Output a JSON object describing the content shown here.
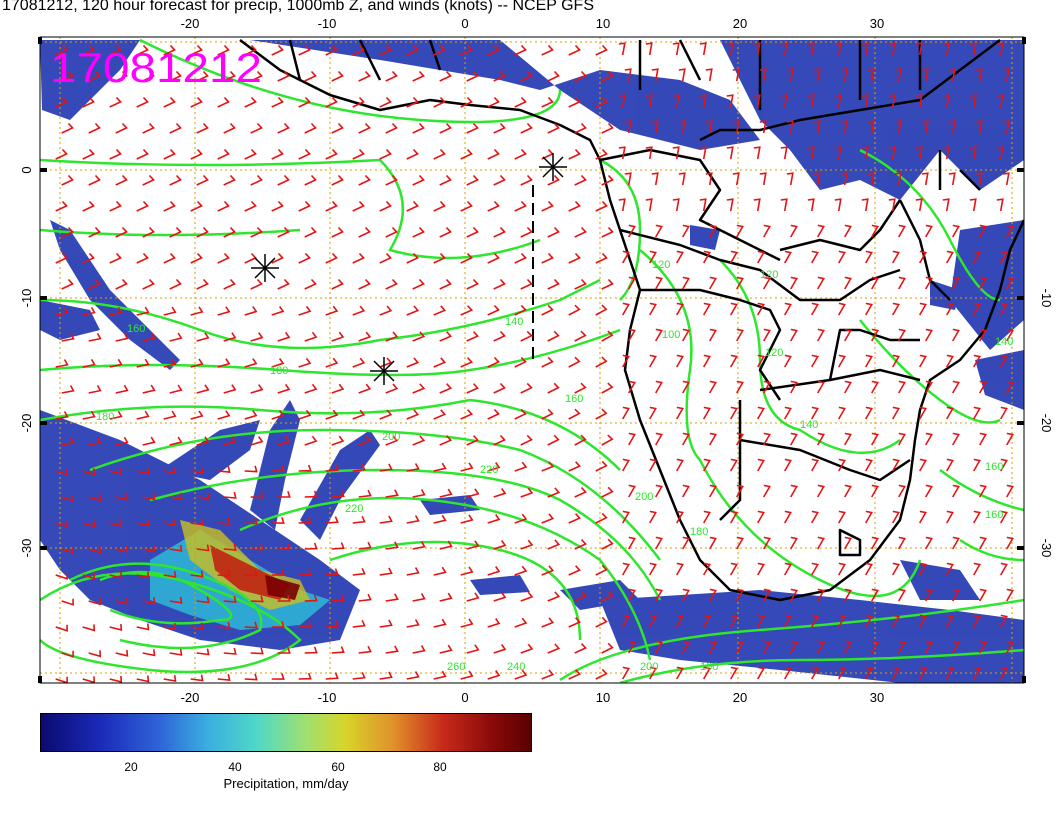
{
  "title": "17081212, 120 hour forecast for precip, 1000mb Z, and winds (knots) -- NCEP GFS",
  "stamp": "17081212",
  "map": {
    "lon_ticks": [
      "-20",
      "-10",
      "0",
      "10",
      "20",
      "30"
    ],
    "lat_ticks": [
      "0",
      "-10",
      "-20",
      "-30"
    ],
    "contour_labels": [
      "160",
      "180",
      "180",
      "120",
      "140",
      "160",
      "200",
      "220",
      "220",
      "240",
      "260",
      "100",
      "120",
      "140",
      "160",
      "180",
      "200",
      "120",
      "140",
      "160",
      "200",
      "100"
    ],
    "colors": {
      "land_border": "#000000",
      "contour": "#2ee62e",
      "wind_barb": "#e31414",
      "grid": "#d9a000",
      "stamp": "#ff00ff",
      "precip": "#1c2fa8"
    }
  },
  "colorbar": {
    "ticks": [
      "20",
      "40",
      "60",
      "80"
    ],
    "label": "Precipitation, mm/day"
  }
}
